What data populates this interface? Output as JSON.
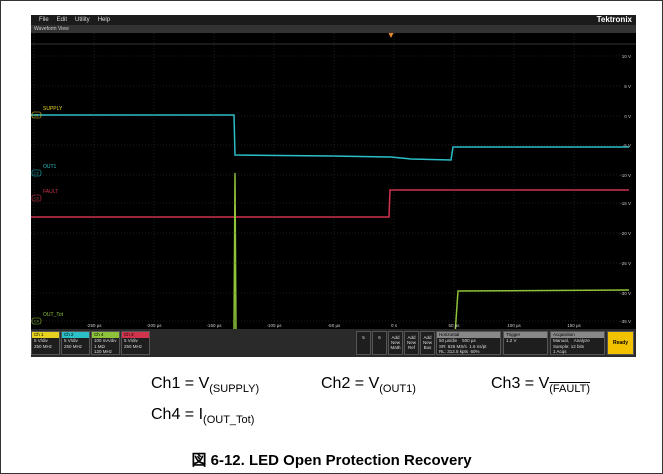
{
  "menu": [
    "File",
    "Edit",
    "Utility",
    "Help"
  ],
  "brand": "Tektronix",
  "view_title": "Waveform View",
  "y_labels": [
    "10 V",
    "5 V",
    "0 V",
    "-5 V",
    "-10 V",
    "-15 V",
    "-20 V",
    "-25 V",
    "-30 V",
    "-35 V"
  ],
  "x_labels": [
    "-250 µs",
    "-200 µs",
    "-150 µs",
    "-100 µs",
    "-50 µs",
    "0 s",
    "50 µs",
    "100 µs",
    "150 µs"
  ],
  "channel_labels": [
    {
      "badge": "C1",
      "name": "SUPPLY"
    },
    {
      "badge": "C2",
      "name": "OUT1"
    },
    {
      "badge": "C3",
      "name": "FAULT"
    },
    {
      "badge": "C4",
      "name": "OUT_Tot"
    }
  ],
  "channels": [
    {
      "head": "Ch 1",
      "lines": [
        "5 V/div",
        "",
        "250 MHz"
      ]
    },
    {
      "head": "Ch 2",
      "lines": [
        "5 V/div",
        "",
        "250 MHz"
      ]
    },
    {
      "head": "Ch 4",
      "lines": [
        "100 mA/div",
        "1 MΩ",
        "120 MHz"
      ]
    },
    {
      "head": "Ch 3",
      "lines": [
        "5 V/div",
        "",
        "250 MHz"
      ]
    }
  ],
  "buttons": [
    "5",
    "6",
    "Add New Math",
    "Add New Ref",
    "Add New Bus"
  ],
  "horizontal": {
    "head": "Horizontal",
    "lines": [
      "50 µs/div    500 µs",
      "SR: 625 MS/s  1.6 ns/pt",
      "RL: 312.5 kpts  60%"
    ]
  },
  "trigger": {
    "head": "Trigger",
    "lines": [
      "1.2 V"
    ]
  },
  "acquisition": {
    "head": "Acquisition",
    "lines": [
      "Manual,    Analyze",
      "Sample: 12 bits",
      "1 Acqs"
    ]
  },
  "status": "Ready",
  "captions": [
    {
      "text": "Ch1 = V",
      "sub": "(SUPPLY)"
    },
    {
      "text": "Ch2 = V",
      "sub": "(OUT1)"
    },
    {
      "text": "Ch3 = V",
      "sub": "(FAULT)"
    },
    {
      "text": "Ch4 = I",
      "sub": "(OUT_Tot)"
    }
  ],
  "figure_title": "図 6-12. LED Open Protection Recovery"
}
